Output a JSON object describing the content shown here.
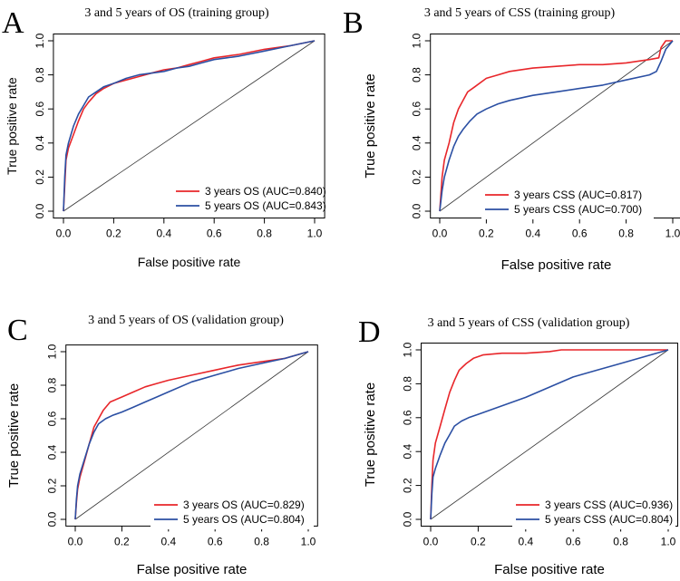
{
  "colors": {
    "red": "#e8262a",
    "blue": "#2b4fa3",
    "axis": "#000000",
    "diag": "#444444"
  },
  "chart_data": [
    {
      "panel": "A",
      "type": "line",
      "title": "3 and 5 years of  OS (training group)",
      "xlabel": "False positive rate",
      "ylabel": "True positive rate",
      "xlim": [
        0,
        1
      ],
      "ylim": [
        0,
        1
      ],
      "xticks": [
        "0.0",
        "0.2",
        "0.4",
        "0.6",
        "0.8",
        "1.0"
      ],
      "yticks": [
        "0.0",
        "0.2",
        "0.4",
        "0.6",
        "0.8",
        "1.0"
      ],
      "legend_position": "bottom-right",
      "series": [
        {
          "name": "3 years OS (AUC=0.840)",
          "color": "red",
          "points": [
            [
              0,
              0
            ],
            [
              0.005,
              0.15
            ],
            [
              0.01,
              0.3
            ],
            [
              0.02,
              0.37
            ],
            [
              0.04,
              0.45
            ],
            [
              0.06,
              0.53
            ],
            [
              0.08,
              0.6
            ],
            [
              0.1,
              0.64
            ],
            [
              0.13,
              0.69
            ],
            [
              0.16,
              0.72
            ],
            [
              0.2,
              0.75
            ],
            [
              0.25,
              0.77
            ],
            [
              0.3,
              0.79
            ],
            [
              0.35,
              0.81
            ],
            [
              0.4,
              0.83
            ],
            [
              0.45,
              0.84
            ],
            [
              0.5,
              0.86
            ],
            [
              0.55,
              0.88
            ],
            [
              0.6,
              0.9
            ],
            [
              0.65,
              0.91
            ],
            [
              0.7,
              0.92
            ],
            [
              0.8,
              0.95
            ],
            [
              0.9,
              0.97
            ],
            [
              1,
              1
            ]
          ]
        },
        {
          "name": "5 years OS (AUC=0.843)",
          "color": "blue",
          "points": [
            [
              0,
              0
            ],
            [
              0.005,
              0.2
            ],
            [
              0.01,
              0.33
            ],
            [
              0.02,
              0.4
            ],
            [
              0.04,
              0.5
            ],
            [
              0.06,
              0.57
            ],
            [
              0.08,
              0.62
            ],
            [
              0.1,
              0.67
            ],
            [
              0.13,
              0.7
            ],
            [
              0.16,
              0.73
            ],
            [
              0.2,
              0.75
            ],
            [
              0.25,
              0.78
            ],
            [
              0.3,
              0.8
            ],
            [
              0.35,
              0.81
            ],
            [
              0.4,
              0.82
            ],
            [
              0.45,
              0.84
            ],
            [
              0.5,
              0.85
            ],
            [
              0.55,
              0.87
            ],
            [
              0.6,
              0.89
            ],
            [
              0.65,
              0.9
            ],
            [
              0.7,
              0.91
            ],
            [
              0.8,
              0.94
            ],
            [
              0.9,
              0.97
            ],
            [
              1,
              1
            ]
          ]
        }
      ]
    },
    {
      "panel": "B",
      "type": "line",
      "title": "3 and 5 years of  CSS (training group)",
      "xlabel": "False positive rate",
      "ylabel": "True positive rate",
      "xlim": [
        0,
        1
      ],
      "ylim": [
        0,
        1
      ],
      "xticks": [
        "0.0",
        "0.2",
        "0.4",
        "0.6",
        "0.8",
        "1.0"
      ],
      "yticks": [
        "0.0",
        "0.2",
        "0.4",
        "0.6",
        "0.8",
        "1.0"
      ],
      "legend_position": "bottom-right",
      "series": [
        {
          "name": "3 years CSS (AUC=0.817)",
          "color": "red",
          "points": [
            [
              0,
              0
            ],
            [
              0.01,
              0.2
            ],
            [
              0.02,
              0.3
            ],
            [
              0.04,
              0.4
            ],
            [
              0.06,
              0.52
            ],
            [
              0.08,
              0.6
            ],
            [
              0.1,
              0.65
            ],
            [
              0.12,
              0.7
            ],
            [
              0.15,
              0.73
            ],
            [
              0.2,
              0.78
            ],
            [
              0.25,
              0.8
            ],
            [
              0.3,
              0.82
            ],
            [
              0.4,
              0.84
            ],
            [
              0.5,
              0.85
            ],
            [
              0.6,
              0.86
            ],
            [
              0.7,
              0.86
            ],
            [
              0.8,
              0.87
            ],
            [
              0.9,
              0.89
            ],
            [
              0.94,
              0.9
            ],
            [
              0.95,
              0.96
            ],
            [
              0.97,
              1
            ],
            [
              1,
              1
            ]
          ]
        },
        {
          "name": "5 years CSS (AUC=0.700)",
          "color": "blue",
          "points": [
            [
              0,
              0
            ],
            [
              0.01,
              0.12
            ],
            [
              0.02,
              0.2
            ],
            [
              0.04,
              0.3
            ],
            [
              0.06,
              0.38
            ],
            [
              0.08,
              0.44
            ],
            [
              0.1,
              0.48
            ],
            [
              0.13,
              0.53
            ],
            [
              0.16,
              0.57
            ],
            [
              0.2,
              0.6
            ],
            [
              0.25,
              0.63
            ],
            [
              0.3,
              0.65
            ],
            [
              0.4,
              0.68
            ],
            [
              0.5,
              0.7
            ],
            [
              0.6,
              0.72
            ],
            [
              0.7,
              0.74
            ],
            [
              0.8,
              0.77
            ],
            [
              0.9,
              0.8
            ],
            [
              0.93,
              0.82
            ],
            [
              0.95,
              0.88
            ],
            [
              0.97,
              0.95
            ],
            [
              1,
              1
            ]
          ]
        }
      ]
    },
    {
      "panel": "C",
      "type": "line",
      "title": "3 and 5 years of  OS (validation group)",
      "xlabel": "False positive rate",
      "ylabel": "True positive rate",
      "xlim": [
        0,
        1
      ],
      "ylim": [
        0,
        1
      ],
      "xticks": [
        "0.0",
        "0.2",
        "0.4",
        "0.6",
        "0.8",
        "1.0"
      ],
      "yticks": [
        "0.0",
        "0.2",
        "0.4",
        "0.6",
        "0.8",
        "1.0"
      ],
      "legend_position": "bottom-right",
      "series": [
        {
          "name": "3 years OS (AUC=0.829)",
          "color": "red",
          "points": [
            [
              0,
              0
            ],
            [
              0.005,
              0.1
            ],
            [
              0.01,
              0.18
            ],
            [
              0.02,
              0.25
            ],
            [
              0.04,
              0.35
            ],
            [
              0.06,
              0.45
            ],
            [
              0.08,
              0.55
            ],
            [
              0.1,
              0.6
            ],
            [
              0.12,
              0.65
            ],
            [
              0.15,
              0.7
            ],
            [
              0.2,
              0.73
            ],
            [
              0.25,
              0.76
            ],
            [
              0.3,
              0.79
            ],
            [
              0.35,
              0.81
            ],
            [
              0.4,
              0.83
            ],
            [
              0.5,
              0.86
            ],
            [
              0.6,
              0.89
            ],
            [
              0.7,
              0.92
            ],
            [
              0.8,
              0.94
            ],
            [
              0.9,
              0.96
            ],
            [
              1,
              1
            ]
          ]
        },
        {
          "name": "5 years OS (AUC=0.804)",
          "color": "blue",
          "points": [
            [
              0,
              0
            ],
            [
              0.005,
              0.12
            ],
            [
              0.01,
              0.2
            ],
            [
              0.02,
              0.27
            ],
            [
              0.04,
              0.36
            ],
            [
              0.06,
              0.45
            ],
            [
              0.08,
              0.52
            ],
            [
              0.1,
              0.57
            ],
            [
              0.13,
              0.6
            ],
            [
              0.16,
              0.62
            ],
            [
              0.2,
              0.64
            ],
            [
              0.25,
              0.67
            ],
            [
              0.3,
              0.7
            ],
            [
              0.35,
              0.73
            ],
            [
              0.4,
              0.76
            ],
            [
              0.5,
              0.82
            ],
            [
              0.6,
              0.86
            ],
            [
              0.7,
              0.9
            ],
            [
              0.8,
              0.93
            ],
            [
              0.9,
              0.96
            ],
            [
              1,
              1
            ]
          ]
        }
      ]
    },
    {
      "panel": "D",
      "type": "line",
      "title": "3 and 5 years of  CSS (validation group)",
      "xlabel": "False positive rate",
      "ylabel": "True positive rate",
      "xlim": [
        0,
        1
      ],
      "ylim": [
        0,
        1
      ],
      "xticks": [
        "0.0",
        "0.2",
        "0.4",
        "0.6",
        "0.8",
        "1.0"
      ],
      "yticks": [
        "0.0",
        "0.2",
        "0.4",
        "0.6",
        "0.8",
        "1.0"
      ],
      "legend_position": "bottom-right",
      "series": [
        {
          "name": "3 years CSS (AUC=0.936)",
          "color": "red",
          "points": [
            [
              0,
              0
            ],
            [
              0.005,
              0.2
            ],
            [
              0.01,
              0.35
            ],
            [
              0.02,
              0.45
            ],
            [
              0.04,
              0.55
            ],
            [
              0.06,
              0.65
            ],
            [
              0.08,
              0.75
            ],
            [
              0.1,
              0.82
            ],
            [
              0.12,
              0.88
            ],
            [
              0.15,
              0.92
            ],
            [
              0.18,
              0.95
            ],
            [
              0.22,
              0.97
            ],
            [
              0.3,
              0.98
            ],
            [
              0.4,
              0.98
            ],
            [
              0.5,
              0.99
            ],
            [
              0.55,
              1.0
            ],
            [
              0.7,
              1.0
            ],
            [
              0.85,
              1.0
            ],
            [
              1,
              1
            ]
          ]
        },
        {
          "name": "5 years CSS (AUC=0.804)",
          "color": "blue",
          "points": [
            [
              0,
              0
            ],
            [
              0.005,
              0.15
            ],
            [
              0.01,
              0.25
            ],
            [
              0.02,
              0.3
            ],
            [
              0.04,
              0.38
            ],
            [
              0.06,
              0.45
            ],
            [
              0.08,
              0.5
            ],
            [
              0.1,
              0.55
            ],
            [
              0.13,
              0.58
            ],
            [
              0.16,
              0.6
            ],
            [
              0.2,
              0.62
            ],
            [
              0.3,
              0.67
            ],
            [
              0.4,
              0.72
            ],
            [
              0.5,
              0.78
            ],
            [
              0.6,
              0.84
            ],
            [
              0.7,
              0.88
            ],
            [
              0.8,
              0.92
            ],
            [
              0.9,
              0.96
            ],
            [
              1,
              1
            ]
          ]
        }
      ]
    }
  ]
}
